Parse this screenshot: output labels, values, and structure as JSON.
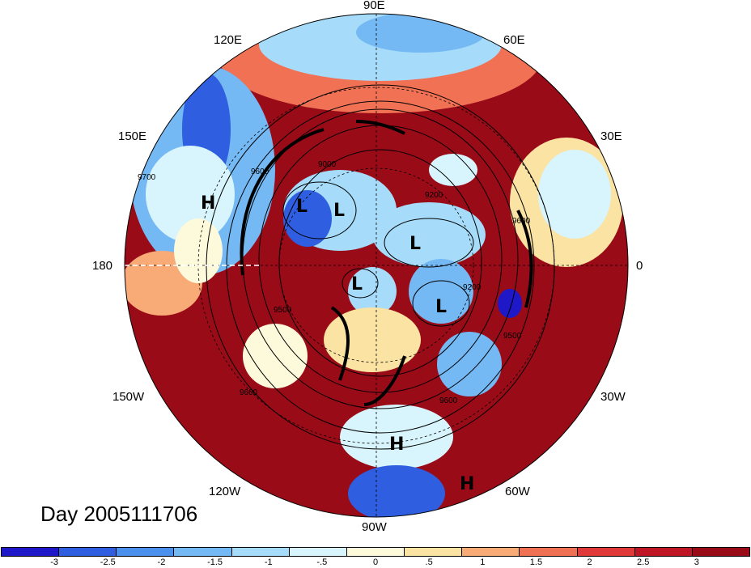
{
  "title": "Day 2005111706",
  "lon_labels": {
    "n90e": "90E",
    "n120e": "120E",
    "n60e": "60E",
    "n150e": "150E",
    "n30e": "30E",
    "w180": "180",
    "e0": "0",
    "n150w": "150W",
    "n30w": "30W",
    "n120w": "120W",
    "n60w": "60W",
    "n90w": "90W"
  },
  "contour_labels": [
    "9700",
    "9600",
    "9000",
    "9200",
    "9200",
    "9600",
    "9500",
    "9500",
    "9600",
    "9600"
  ],
  "pressure_centers": [
    "H",
    "L",
    "L",
    "L",
    "L",
    "L",
    "H",
    "H"
  ],
  "colorbar": {
    "ticks": [
      "-3",
      "-2.5",
      "-2",
      "-1.5",
      "-1",
      "-.5",
      "0",
      ".5",
      "1",
      "1.5",
      "2",
      "2.5",
      "3"
    ],
    "colors": [
      "#1f18c8",
      "#2f5fe0",
      "#4a90ec",
      "#74b8f4",
      "#a6dcfa",
      "#d8f4fc",
      "#fdfadc",
      "#fbe3a3",
      "#f8aa77",
      "#f07154",
      "#e1393a",
      "#bf1524",
      "#9a0b18"
    ]
  }
}
